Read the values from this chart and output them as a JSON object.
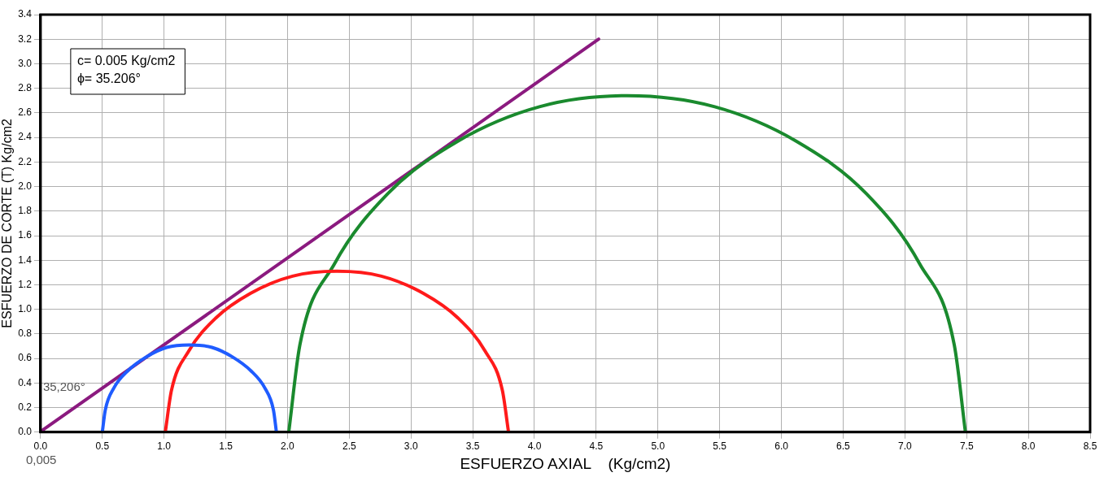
{
  "chart_data": {
    "type": "line",
    "xlabel": "ESFUERZO AXIAL    (Kg/cm2)",
    "ylabel": "ESFUERZO DE CORTE (T) Kg/cm2",
    "series": [
      {
        "color": "#1f5cff",
        "x": [
          1.91,
          1.886,
          1.816,
          1.703,
          1.558,
          1.388,
          1.205,
          1.022,
          0.852,
          0.707,
          0.594,
          0.524,
          0.5
        ],
        "values": [
          0,
          0.18,
          0.36,
          0.5,
          0.61,
          0.69,
          0.71,
          0.69,
          0.61,
          0.5,
          0.36,
          0.18,
          0
        ]
      },
      {
        "color": "#ff1a1a",
        "x": [
          3.79,
          3.74,
          3.6,
          3.38,
          3.1,
          2.76,
          2.4,
          2.04,
          1.7,
          1.42,
          1.2,
          1.06,
          1.01
        ],
        "values": [
          0,
          0.34,
          0.66,
          0.93,
          1.13,
          1.27,
          1.31,
          1.27,
          1.13,
          0.93,
          0.66,
          0.34,
          0
        ]
      },
      {
        "color": "#1a8a2e",
        "x": [
          7.49,
          7.4,
          7.12,
          6.69,
          6.12,
          5.46,
          4.75,
          4.04,
          3.38,
          2.81,
          2.38,
          2.1,
          2.01
        ],
        "values": [
          0,
          0.71,
          1.37,
          1.94,
          2.37,
          2.65,
          2.74,
          2.65,
          2.37,
          1.94,
          1.37,
          0.71,
          0
        ]
      },
      {
        "color": "#8b1a7f",
        "x": [
          0,
          4.52
        ],
        "values": [
          0.005,
          3.2
        ]
      }
    ],
    "xlim": [
      0,
      8.5
    ],
    "xticks": [
      {
        "value": 0,
        "label": "0.0"
      },
      {
        "value": 0.5,
        "label": "0.5"
      },
      {
        "value": 1,
        "label": "1.0"
      },
      {
        "value": 1.5,
        "label": "1.5"
      },
      {
        "value": 2,
        "label": "2.0"
      },
      {
        "value": 2.5,
        "label": "2.5"
      },
      {
        "value": 3,
        "label": "3.0"
      },
      {
        "value": 3.5,
        "label": "3.5"
      },
      {
        "value": 4,
        "label": "4.0"
      },
      {
        "value": 4.5,
        "label": "4.5"
      },
      {
        "value": 5,
        "label": "5.0"
      },
      {
        "value": 5.5,
        "label": "5.5"
      },
      {
        "value": 6,
        "label": "6.0"
      },
      {
        "value": 6.5,
        "label": "6.5"
      },
      {
        "value": 7,
        "label": "7.0"
      },
      {
        "value": 7.5,
        "label": "7.5"
      },
      {
        "value": 8,
        "label": "8.0"
      },
      {
        "value": 8.5,
        "label": "8.5"
      }
    ],
    "ylim": [
      0,
      3.4
    ],
    "yticks": [
      {
        "value": 0,
        "label": "0.0"
      },
      {
        "value": 0.2,
        "label": "0.2"
      },
      {
        "value": 0.4,
        "label": "0.4"
      },
      {
        "value": 0.6,
        "label": "0.6"
      },
      {
        "value": 0.8,
        "label": "0.8"
      },
      {
        "value": 1,
        "label": "1.0"
      },
      {
        "value": 1.2,
        "label": "1.2"
      },
      {
        "value": 1.4,
        "label": "1.4"
      },
      {
        "value": 1.6,
        "label": "1.6"
      },
      {
        "value": 1.8,
        "label": "1.8"
      },
      {
        "value": 2,
        "label": "2.0"
      },
      {
        "value": 2.2,
        "label": "2.2"
      },
      {
        "value": 2.4,
        "label": "2.4"
      },
      {
        "value": 2.6,
        "label": "2.6"
      },
      {
        "value": 2.8,
        "label": "2.8"
      },
      {
        "value": 3,
        "label": "3.0"
      },
      {
        "value": 3.2,
        "label": "3.2"
      },
      {
        "value": 3.4,
        "label": "3.4"
      }
    ],
    "grid": true,
    "marker": "none",
    "line_style": "solid",
    "annotations": [
      "c= 0.005 Kg/cm2",
      "ϕ= 35.206°",
      "35,206°",
      "0,005"
    ]
  }
}
